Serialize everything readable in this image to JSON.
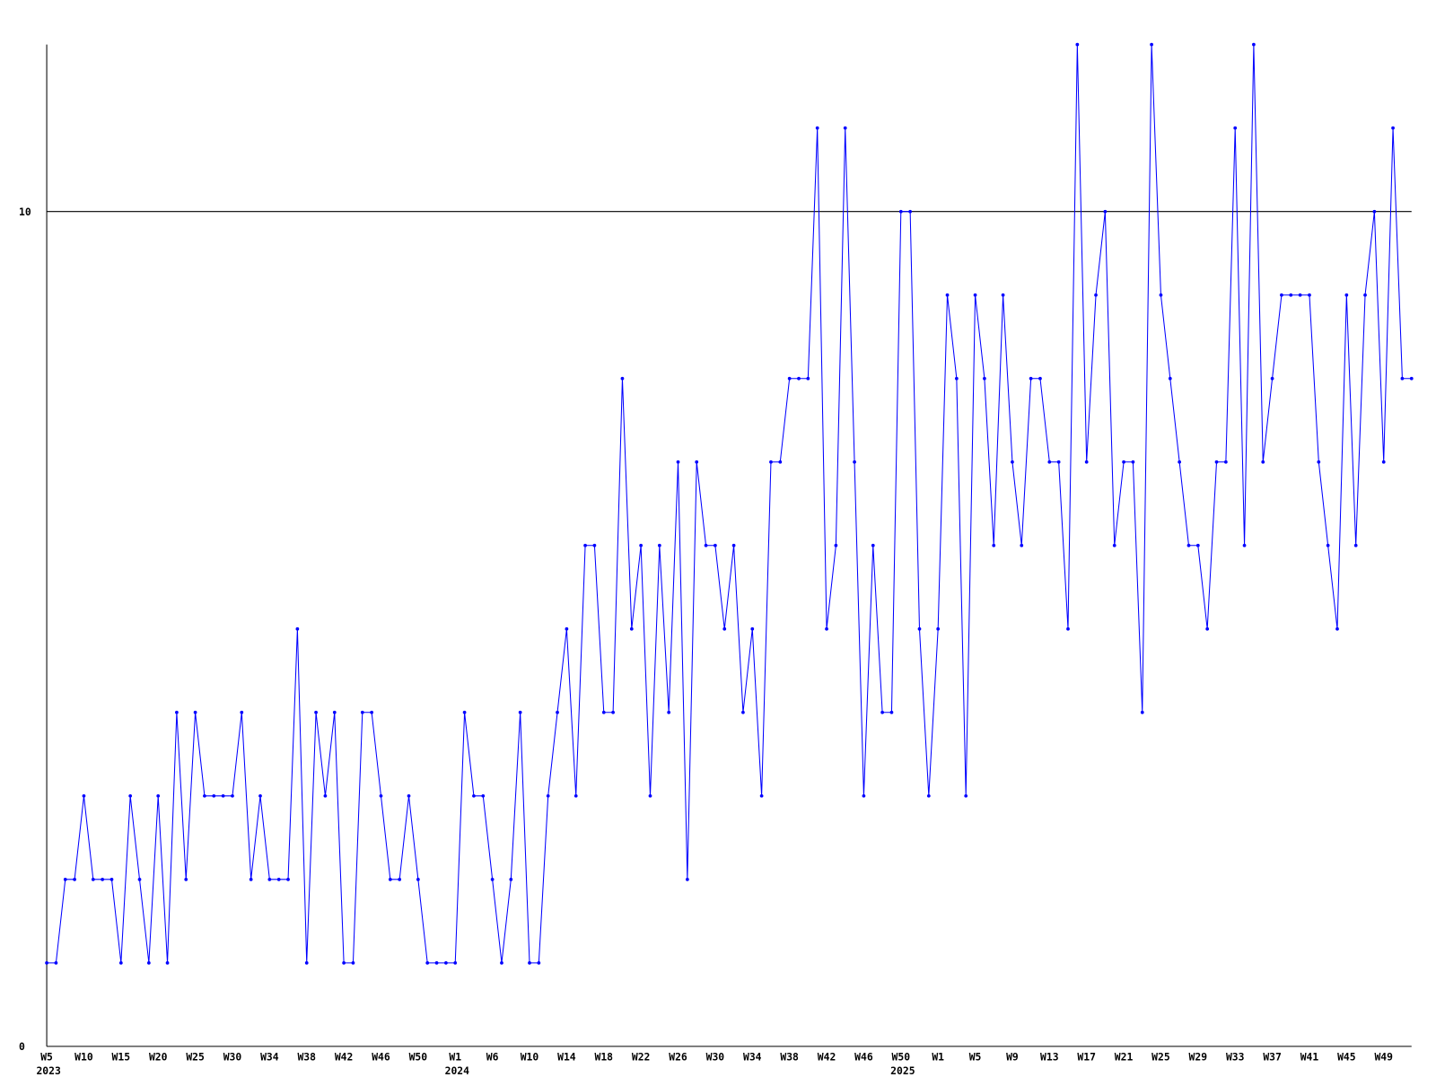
{
  "chart_data": {
    "type": "line",
    "categories": [
      "W5",
      null,
      null,
      null,
      "W10",
      null,
      null,
      null,
      "W15",
      null,
      null,
      null,
      "W20",
      null,
      null,
      null,
      "W25",
      null,
      null,
      null,
      "W30",
      null,
      null,
      null,
      "W34",
      null,
      null,
      null,
      "W38",
      null,
      null,
      null,
      "W42",
      null,
      null,
      null,
      "W46",
      null,
      null,
      null,
      "W50",
      null,
      null,
      null,
      "W1",
      null,
      null,
      null,
      "W6",
      null,
      null,
      null,
      "W10",
      null,
      null,
      null,
      "W14",
      null,
      null,
      null,
      "W18",
      null,
      null,
      null,
      "W22",
      null,
      null,
      null,
      "W26",
      null,
      null,
      null,
      "W30",
      null,
      null,
      null,
      "W34",
      null,
      null,
      null,
      "W38",
      null,
      null,
      null,
      "W42",
      null,
      null,
      null,
      "W46",
      null,
      null,
      null,
      "W50",
      null,
      null,
      null,
      "W1",
      null,
      null,
      null,
      "W5",
      null,
      null,
      null,
      "W9",
      null,
      null,
      null,
      "W13",
      null,
      null,
      null,
      "W17",
      null,
      null,
      null,
      "W21",
      null,
      null,
      null,
      "W25",
      null,
      null,
      null,
      "W29",
      null,
      null,
      null,
      "W33",
      null,
      null,
      null,
      "W37",
      null,
      null,
      null,
      "W41",
      null,
      null,
      null,
      "W45",
      null,
      null,
      null,
      "W49",
      null,
      null,
      null
    ],
    "years": [
      "2023",
      null,
      null,
      null,
      null,
      null,
      null,
      null,
      null,
      null,
      null,
      null,
      null,
      null,
      null,
      null,
      null,
      null,
      null,
      null,
      null,
      null,
      null,
      null,
      null,
      null,
      null,
      null,
      null,
      null,
      null,
      null,
      null,
      null,
      null,
      null,
      null,
      null,
      null,
      null,
      null,
      null,
      null,
      null,
      "2024",
      null,
      null,
      null,
      null,
      null,
      null,
      null,
      null,
      null,
      null,
      null,
      null,
      null,
      null,
      null,
      null,
      null,
      null,
      null,
      null,
      null,
      null,
      null,
      null,
      null,
      null,
      null,
      null,
      null,
      null,
      null,
      null,
      null,
      null,
      null,
      null,
      null,
      null,
      null,
      null,
      null,
      null,
      null,
      null,
      null,
      null,
      null,
      "2025",
      null,
      null,
      null,
      null,
      null,
      null,
      null,
      null,
      null,
      null,
      null,
      null,
      null,
      null,
      null,
      null,
      null,
      null,
      null,
      null,
      null,
      null,
      null,
      null,
      null,
      null,
      null,
      null,
      null,
      null,
      null,
      null,
      null,
      null,
      null,
      null,
      null,
      null,
      null,
      null,
      null,
      null,
      null,
      null,
      null,
      null,
      null,
      null,
      null,
      null,
      null,
      null,
      null
    ],
    "series": [
      {
        "color": "#0000ff",
        "values": [
          1,
          1,
          2,
          2,
          3,
          2,
          2,
          2,
          1,
          3,
          2,
          1,
          3,
          1,
          4,
          2,
          4,
          3,
          3,
          3,
          3,
          4,
          2,
          3,
          2,
          2,
          2,
          5,
          1,
          4,
          3,
          4,
          1,
          1,
          4,
          4,
          3,
          2,
          2,
          3,
          2,
          1,
          1,
          1,
          1,
          4,
          3,
          3,
          2,
          1,
          2,
          4,
          1,
          1,
          3,
          4,
          5,
          3,
          6,
          6,
          4,
          4,
          8,
          5,
          6,
          3,
          6,
          4,
          7,
          2,
          7,
          6,
          6,
          5,
          6,
          4,
          5,
          3,
          7,
          7,
          8,
          8,
          8,
          11,
          5,
          6,
          11,
          7,
          3,
          6,
          4,
          4,
          10,
          10,
          5,
          3,
          5,
          9,
          8,
          3,
          9,
          8,
          6,
          9,
          7,
          6,
          8,
          8,
          7,
          7,
          5,
          12,
          7,
          9,
          10,
          6,
          7,
          7,
          4,
          12,
          9,
          8,
          7,
          6,
          6,
          5,
          7,
          7,
          11,
          6,
          12,
          7,
          8,
          9,
          9,
          9,
          9,
          7,
          6,
          5,
          9,
          6,
          9,
          10,
          7,
          11,
          8,
          8
        ]
      }
    ],
    "ylim": [
      0,
      12
    ],
    "yticks": [
      0,
      10
    ],
    "grid": true
  }
}
